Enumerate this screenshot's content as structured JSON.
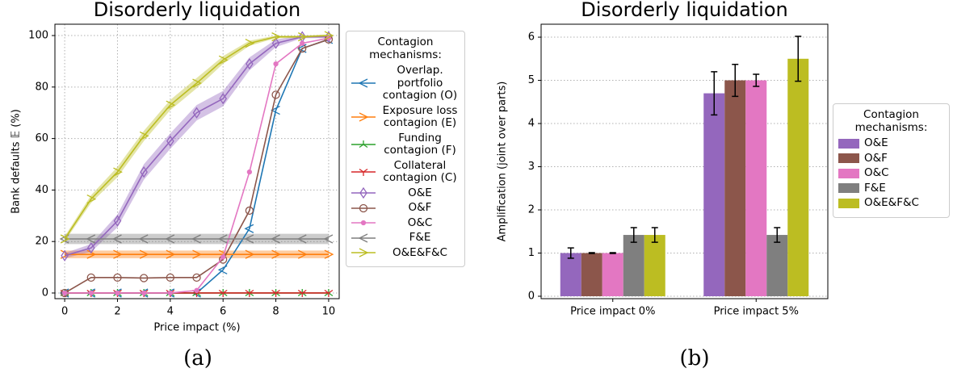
{
  "chart_data": [
    {
      "type": "line",
      "title": "Disorderly liquidation",
      "caption": "(a)",
      "x_label": "Price impact (%)",
      "y_label": "Bank defaults 𝔼 (%)",
      "legend_title": "Contagion mechanisms:",
      "legend": "outside right",
      "grid": true,
      "x": [
        0,
        1,
        2,
        3,
        4,
        5,
        6,
        7,
        8,
        9,
        10
      ],
      "xlim": [
        -0.37,
        10.4
      ],
      "xticks": [
        0,
        2,
        4,
        6,
        8,
        10
      ],
      "ylim": [
        -2.2,
        104.4
      ],
      "yticks": [
        0,
        20,
        40,
        60,
        80,
        100
      ],
      "series": [
        {
          "name": "Overlap. portfolio contagion (O)",
          "color": "#1f77b4",
          "marker": "left",
          "values": [
            0,
            0,
            0,
            0,
            0,
            0,
            9,
            25,
            71,
            95,
            98.5
          ]
        },
        {
          "name": "Exposure loss contagion (E)",
          "color": "#ff7f0e",
          "marker": "right",
          "values": [
            15,
            15,
            15,
            15,
            15,
            15,
            15,
            15,
            15,
            15,
            15
          ],
          "errors": [
            1.5,
            1.5,
            1.5,
            1.5,
            1.5,
            1.5,
            1.5,
            1.5,
            1.5,
            1.5,
            1.5
          ]
        },
        {
          "name": "Funding contagion (F)",
          "color": "#2ca02c",
          "marker": "tri-up",
          "values": [
            0,
            0,
            0,
            0,
            0,
            0,
            0,
            0,
            0,
            0,
            0
          ]
        },
        {
          "name": "Collateral contagion (C)",
          "color": "#d62728",
          "marker": "tri-down",
          "values": [
            0,
            0,
            0,
            0,
            0,
            0,
            0,
            0,
            0,
            0,
            0
          ]
        },
        {
          "name": "O&E",
          "color": "#9467bd",
          "marker": "diamond",
          "values": [
            14.5,
            17.5,
            28,
            47,
            59,
            70,
            75.5,
            89,
            97,
            99.5,
            99.5
          ],
          "errors": [
            1,
            1.5,
            2.5,
            3,
            3,
            3,
            3,
            2.5,
            1.5,
            0.5,
            0.5
          ]
        },
        {
          "name": "O&F",
          "color": "#8c564b",
          "marker": "circle",
          "values": [
            0,
            6,
            6,
            5.8,
            6,
            6,
            13,
            32,
            77,
            95,
            98.5
          ]
        },
        {
          "name": "O&C",
          "color": "#e377c2",
          "marker": "point",
          "values": [
            0,
            0,
            0,
            0,
            0,
            1,
            14,
            47,
            89,
            97,
            99
          ]
        },
        {
          "name": "F&E",
          "color": "#7f7f7f",
          "marker": "left",
          "values": [
            21,
            21,
            21,
            21,
            21,
            21,
            21,
            21,
            21,
            21,
            21
          ],
          "errors": [
            2,
            2,
            2,
            2,
            2,
            2,
            2,
            2,
            2,
            2,
            2
          ]
        },
        {
          "name": "O&E&F&C",
          "color": "#bcbd22",
          "marker": "right",
          "values": [
            21,
            36.5,
            47,
            61,
            73,
            81.5,
            90.5,
            97,
            99.5,
            99.5,
            100
          ],
          "errors": [
            1,
            1.5,
            2,
            2,
            2,
            2,
            1.5,
            1,
            0.5,
            0.5,
            0.5
          ]
        }
      ]
    },
    {
      "type": "bar",
      "title": "Disorderly liquidation",
      "caption": "(b)",
      "y_label": "Amplification (joint over parts)",
      "legend_title": "Contagion mechanisms:",
      "legend": "outside right",
      "grid": true,
      "categories": [
        "Price impact 0%",
        "Price impact 5%"
      ],
      "ylim": [
        -0.056,
        6.3
      ],
      "yticks": [
        0,
        1,
        2,
        3,
        4,
        5,
        6
      ],
      "series": [
        {
          "name": "O&E",
          "color": "#9467bd",
          "values": [
            1.0,
            4.7
          ],
          "errors": [
            0.12,
            0.5
          ]
        },
        {
          "name": "O&F",
          "color": "#8c564b",
          "values": [
            1.0,
            5.0
          ],
          "errors": [
            0.01,
            0.37
          ]
        },
        {
          "name": "O&C",
          "color": "#e377c2",
          "values": [
            1.0,
            5.0
          ],
          "errors": [
            0.01,
            0.14
          ]
        },
        {
          "name": "F&E",
          "color": "#7f7f7f",
          "values": [
            1.42,
            1.42
          ],
          "errors": [
            0.17,
            0.17
          ]
        },
        {
          "name": "O&E&F&C",
          "color": "#bcbd22",
          "values": [
            1.42,
            5.5
          ],
          "errors": [
            0.17,
            0.52
          ]
        }
      ]
    }
  ]
}
